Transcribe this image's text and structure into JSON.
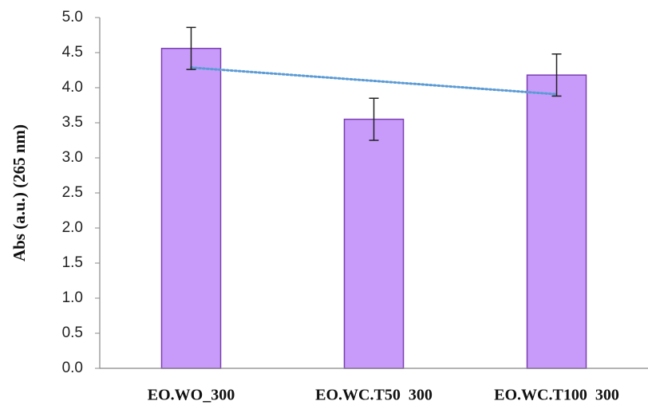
{
  "chart_data": {
    "type": "bar",
    "y_label": "Abs (a.u.) (265 nm)",
    "categories": [
      "EO.WO_300",
      "EO.WC.T50  300",
      "EO.WC.T100  300"
    ],
    "values": [
      4.56,
      3.55,
      4.18
    ],
    "errors": [
      0.3,
      0.3,
      0.3
    ],
    "color": "#c89bfb",
    "edge_color": "#7a3fb0",
    "error_color": "#222",
    "trendline": "linear",
    "trendline_color": "#5b9bd5",
    "ylim": [
      0,
      5
    ],
    "yticks": [
      {
        "value": 0,
        "label": "0.0"
      },
      0.5,
      {
        "value": 1,
        "label": "1.0"
      },
      1.5,
      {
        "value": 2,
        "label": "2.0"
      },
      2.5,
      {
        "value": 3,
        "label": "3.0"
      },
      3.5,
      {
        "value": 4,
        "label": "4.0"
      },
      4.5,
      {
        "value": 5,
        "label": "5.0"
      }
    ],
    "grid": false
  }
}
